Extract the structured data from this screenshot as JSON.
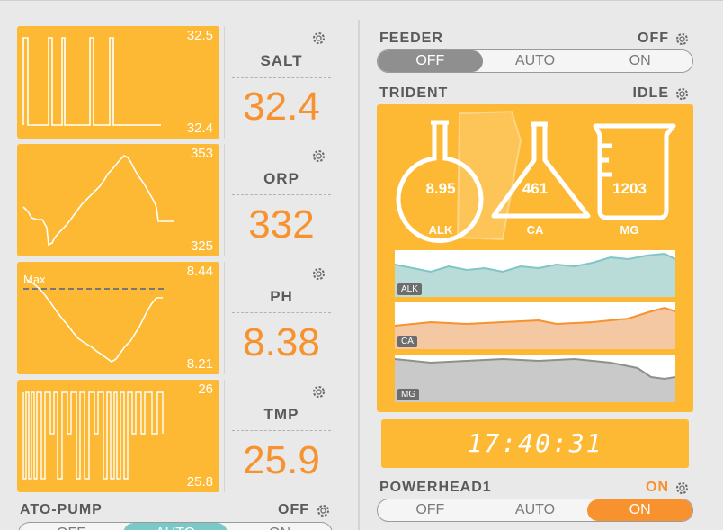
{
  "probes": [
    {
      "name": "SALT",
      "value": "32.4",
      "chart": {
        "max": "32.5",
        "min": "32.4"
      }
    },
    {
      "name": "ORP",
      "value": "332",
      "chart": {
        "max": "353",
        "min": "325"
      }
    },
    {
      "name": "PH",
      "value": "8.38",
      "chart": {
        "max": "8.44",
        "min": "8.21",
        "threshold_label": "Max"
      }
    },
    {
      "name": "TMP",
      "value": "25.9",
      "chart": {
        "max": "26",
        "min": "25.8"
      }
    }
  ],
  "ato_pump": {
    "title": "ATO-PUMP",
    "state": "OFF",
    "options": [
      "OFF",
      "AUTO",
      "ON"
    ],
    "selected": "AUTO"
  },
  "feeder": {
    "title": "FEEDER",
    "state": "OFF",
    "options": [
      "OFF",
      "AUTO",
      "ON"
    ],
    "selected": "OFF"
  },
  "trident": {
    "title": "TRIDENT",
    "state": "IDLE",
    "alk": {
      "label": "ALK",
      "value": "8.95"
    },
    "ca": {
      "label": "CA",
      "value": "461"
    },
    "mg": {
      "label": "MG",
      "value": "1203"
    },
    "strips": [
      {
        "tag": "ALK",
        "color": "#7fc6c6",
        "fill": "#b9dcd9"
      },
      {
        "tag": "CA",
        "color": "#f7922e",
        "fill": "#f3c8a2"
      },
      {
        "tag": "MG",
        "color": "#8f8f8f",
        "fill": "#c9c9c9"
      }
    ]
  },
  "clock": {
    "time": "17:40:31"
  },
  "powerhead1": {
    "title": "POWERHEAD1",
    "state": "ON",
    "options": [
      "OFF",
      "AUTO",
      "ON"
    ],
    "selected": "ON"
  },
  "colors": {
    "accent_orange": "#f7922e",
    "tile_yellow": "#fdb933",
    "teal": "#7bc8c8",
    "text_grey": "#5a5a5a"
  }
}
